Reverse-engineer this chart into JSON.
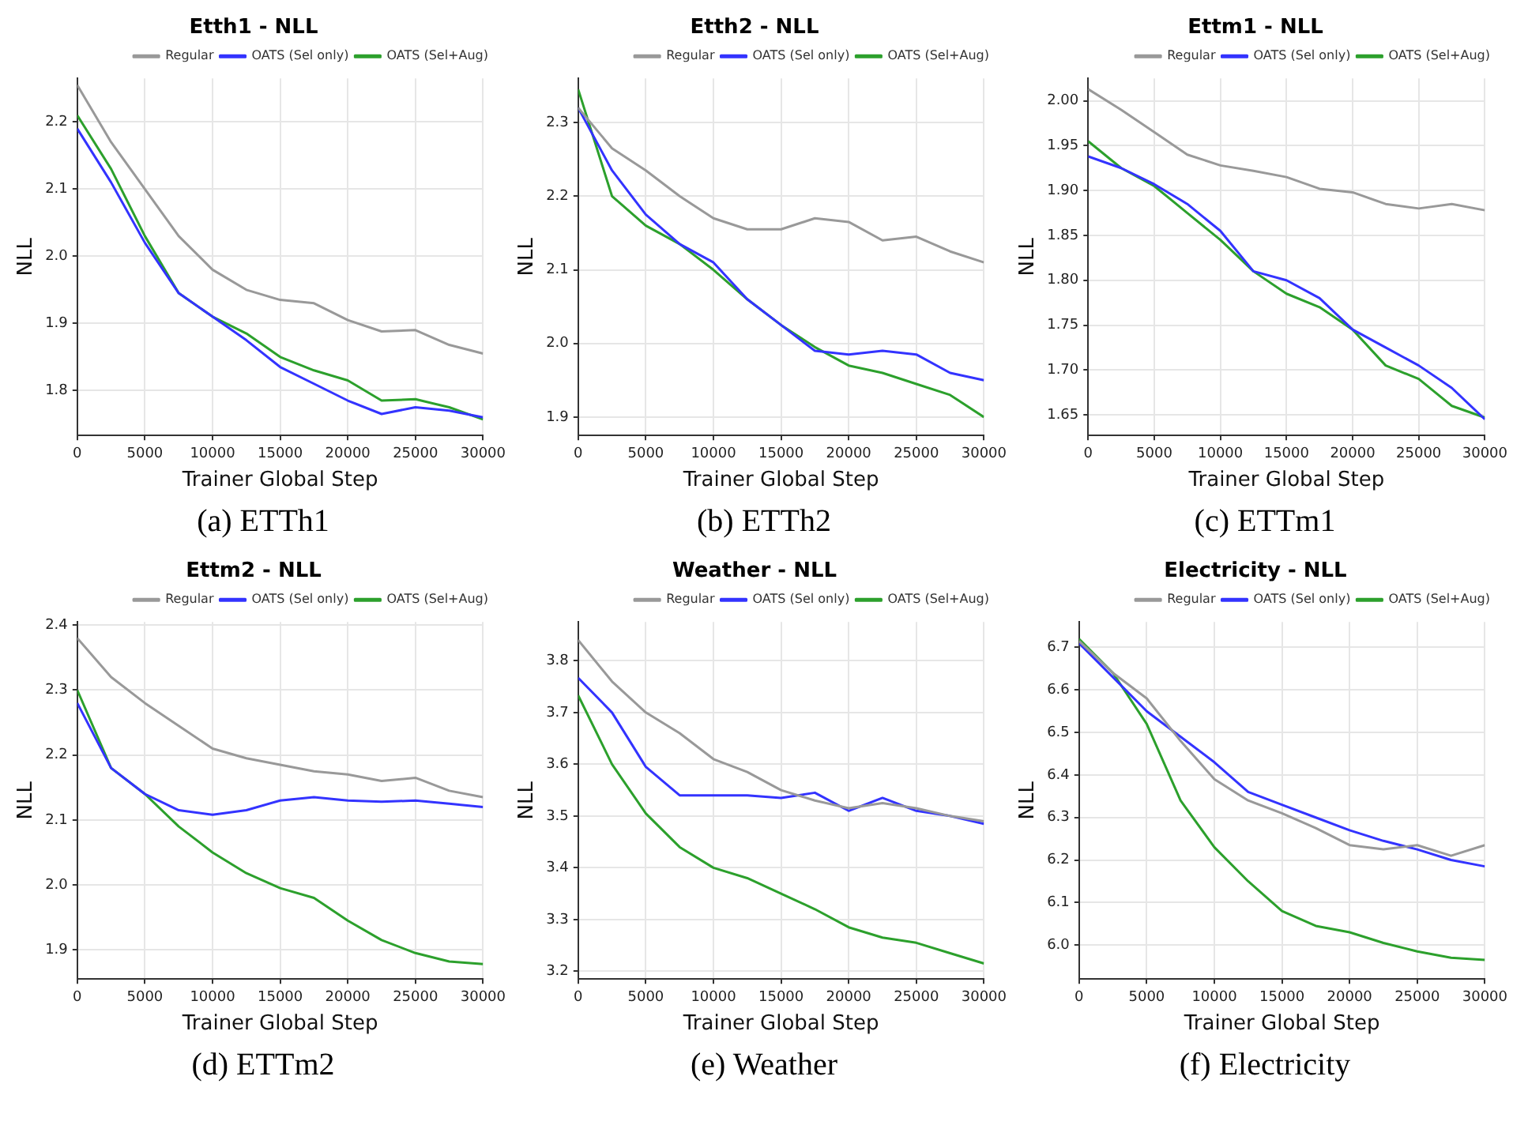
{
  "chart_data": [
    {
      "type": "line",
      "title": "Etth1 - NLL",
      "xlabel": "Trainer Global Step",
      "ylabel": "NLL",
      "annotations": [
        "(a) ETTh1"
      ],
      "legend": "top right",
      "grid": true,
      "marker": "none",
      "line_style": "solid",
      "xlim": [
        0,
        30000
      ],
      "xticks": [
        0,
        5000,
        10000,
        15000,
        20000,
        25000,
        30000
      ],
      "ylim": [
        1.733,
        2.265
      ],
      "yticks": [
        1.8,
        1.9,
        {
          "value": 2.0,
          "label": "2.0"
        },
        2.1,
        2.2
      ],
      "x": [
        0,
        2500,
        5000,
        7500,
        10000,
        12500,
        15000,
        17500,
        20000,
        22500,
        25000,
        27500,
        30000
      ],
      "series": [
        {
          "name": "Regular",
          "color": "#999999",
          "values": [
            2.255,
            2.17,
            2.1,
            2.03,
            1.98,
            1.95,
            1.935,
            1.93,
            1.905,
            1.888,
            1.89,
            1.868,
            1.855
          ]
        },
        {
          "name": "OATS (Sel only)",
          "color": "#3333ff",
          "values": [
            2.19,
            2.11,
            2.02,
            1.945,
            1.91,
            1.875,
            1.835,
            1.81,
            1.785,
            1.765,
            1.775,
            1.77,
            1.76
          ]
        },
        {
          "name": "OATS (Sel+Aug)",
          "color": "#2ca02c",
          "values": [
            2.21,
            2.13,
            2.03,
            1.945,
            1.91,
            1.885,
            1.85,
            1.83,
            1.815,
            1.785,
            1.787,
            1.775,
            1.757
          ]
        }
      ]
    },
    {
      "type": "line",
      "title": "Etth2 - NLL",
      "xlabel": "Trainer Global Step",
      "ylabel": "NLL",
      "annotations": [
        "(b) ETTh2"
      ],
      "legend": "top right",
      "grid": true,
      "marker": "none",
      "line_style": "solid",
      "xlim": [
        0,
        30000
      ],
      "xticks": [
        0,
        5000,
        10000,
        15000,
        20000,
        25000,
        30000
      ],
      "ylim": [
        1.875,
        2.36
      ],
      "yticks": [
        1.9,
        {
          "value": 2.0,
          "label": "2.0"
        },
        2.1,
        2.2,
        2.3
      ],
      "x": [
        0,
        2500,
        5000,
        7500,
        10000,
        12500,
        15000,
        17500,
        20000,
        22500,
        25000,
        27500,
        30000
      ],
      "series": [
        {
          "name": "Regular",
          "color": "#999999",
          "values": [
            2.32,
            2.265,
            2.235,
            2.2,
            2.17,
            2.155,
            2.155,
            2.17,
            2.165,
            2.14,
            2.145,
            2.125,
            2.11
          ]
        },
        {
          "name": "OATS (Sel only)",
          "color": "#3333ff",
          "values": [
            2.32,
            2.235,
            2.175,
            2.135,
            2.11,
            2.06,
            2.025,
            1.99,
            1.985,
            1.99,
            1.985,
            1.96,
            1.95
          ]
        },
        {
          "name": "OATS (Sel+Aug)",
          "color": "#2ca02c",
          "values": [
            2.345,
            2.2,
            2.16,
            2.135,
            2.1,
            2.06,
            2.025,
            1.995,
            1.97,
            1.96,
            1.945,
            1.93,
            1.9
          ]
        }
      ]
    },
    {
      "type": "line",
      "title": "Ettm1 - NLL",
      "xlabel": "Trainer Global Step",
      "ylabel": "NLL",
      "annotations": [
        "(c) ETTm1"
      ],
      "legend": "top right",
      "grid": true,
      "marker": "none",
      "line_style": "solid",
      "xlim": [
        0,
        30000
      ],
      "xticks": [
        0,
        5000,
        10000,
        15000,
        20000,
        25000,
        30000
      ],
      "ylim": [
        1.627,
        2.025
      ],
      "yticks": [
        1.65,
        {
          "value": 1.7,
          "label": "1.70"
        },
        1.75,
        {
          "value": 1.8,
          "label": "1.80"
        },
        1.85,
        {
          "value": 1.9,
          "label": "1.90"
        },
        1.95,
        {
          "value": 2.0,
          "label": "2.00"
        }
      ],
      "x": [
        0,
        2500,
        5000,
        7500,
        10000,
        12500,
        15000,
        17500,
        20000,
        22500,
        25000,
        27500,
        30000
      ],
      "series": [
        {
          "name": "Regular",
          "color": "#999999",
          "values": [
            2.013,
            1.99,
            1.965,
            1.94,
            1.928,
            1.922,
            1.915,
            1.902,
            1.898,
            1.885,
            1.88,
            1.885,
            1.878
          ]
        },
        {
          "name": "OATS (Sel only)",
          "color": "#3333ff",
          "values": [
            1.938,
            1.925,
            1.907,
            1.885,
            1.855,
            1.81,
            1.8,
            1.78,
            1.745,
            1.725,
            1.705,
            1.68,
            1.645
          ]
        },
        {
          "name": "OATS (Sel+Aug)",
          "color": "#2ca02c",
          "values": [
            1.955,
            1.925,
            1.905,
            1.875,
            1.845,
            1.81,
            1.785,
            1.77,
            1.745,
            1.705,
            1.69,
            1.66,
            1.647
          ]
        }
      ]
    },
    {
      "type": "line",
      "title": "Ettm2 - NLL",
      "xlabel": "Trainer Global Step",
      "ylabel": "NLL",
      "annotations": [
        "(d) ETTm2"
      ],
      "legend": "top right",
      "grid": true,
      "marker": "none",
      "line_style": "solid",
      "xlim": [
        0,
        30000
      ],
      "xticks": [
        0,
        5000,
        10000,
        15000,
        20000,
        25000,
        30000
      ],
      "ylim": [
        1.855,
        2.405
      ],
      "yticks": [
        1.9,
        {
          "value": 2.0,
          "label": "2.0"
        },
        2.1,
        2.2,
        2.3,
        2.4
      ],
      "x": [
        0,
        2500,
        5000,
        7500,
        10000,
        12500,
        15000,
        17500,
        20000,
        22500,
        25000,
        27500,
        30000
      ],
      "series": [
        {
          "name": "Regular",
          "color": "#999999",
          "values": [
            2.38,
            2.32,
            2.28,
            2.245,
            2.21,
            2.195,
            2.185,
            2.175,
            2.17,
            2.16,
            2.165,
            2.145,
            2.135
          ]
        },
        {
          "name": "OATS (Sel only)",
          "color": "#3333ff",
          "values": [
            2.28,
            2.18,
            2.14,
            2.115,
            2.108,
            2.115,
            2.13,
            2.135,
            2.13,
            2.128,
            2.13,
            2.125,
            2.12
          ]
        },
        {
          "name": "OATS (Sel+Aug)",
          "color": "#2ca02c",
          "values": [
            2.3,
            2.18,
            2.14,
            2.09,
            2.05,
            2.018,
            1.995,
            1.98,
            1.945,
            1.915,
            1.895,
            1.882,
            1.878
          ]
        }
      ]
    },
    {
      "type": "line",
      "title": "Weather - NLL",
      "xlabel": "Trainer Global Step",
      "ylabel": "NLL",
      "annotations": [
        "(e) Weather"
      ],
      "legend": "top right",
      "grid": true,
      "marker": "none",
      "line_style": "solid",
      "xlim": [
        0,
        30000
      ],
      "xticks": [
        0,
        5000,
        10000,
        15000,
        20000,
        25000,
        30000
      ],
      "ylim": [
        3.185,
        3.875
      ],
      "yticks": [
        3.2,
        3.3,
        3.4,
        3.5,
        3.6,
        3.7,
        3.8
      ],
      "x": [
        0,
        2500,
        5000,
        7500,
        10000,
        12500,
        15000,
        17500,
        20000,
        22500,
        25000,
        27500,
        30000
      ],
      "series": [
        {
          "name": "Regular",
          "color": "#999999",
          "values": [
            3.84,
            3.76,
            3.7,
            3.66,
            3.61,
            3.585,
            3.55,
            3.53,
            3.515,
            3.525,
            3.515,
            3.5,
            3.49
          ]
        },
        {
          "name": "OATS (Sel only)",
          "color": "#3333ff",
          "values": [
            3.767,
            3.7,
            3.595,
            3.54,
            3.54,
            3.54,
            3.535,
            3.545,
            3.51,
            3.535,
            3.51,
            3.5,
            3.485
          ]
        },
        {
          "name": "OATS (Sel+Aug)",
          "color": "#2ca02c",
          "values": [
            3.733,
            3.6,
            3.505,
            3.44,
            3.4,
            3.38,
            3.35,
            3.32,
            3.285,
            3.265,
            3.255,
            3.235,
            3.215
          ]
        }
      ]
    },
    {
      "type": "line",
      "title": "Electricity - NLL",
      "xlabel": "Trainer Global Step",
      "ylabel": "NLL",
      "annotations": [
        "(f) Electricity"
      ],
      "legend": "top right",
      "grid": true,
      "marker": "none",
      "line_style": "solid",
      "xlim": [
        0,
        30000
      ],
      "xticks": [
        0,
        5000,
        10000,
        15000,
        20000,
        25000,
        30000
      ],
      "ylim": [
        5.92,
        6.76
      ],
      "yticks": [
        {
          "value": 6.0,
          "label": "6.0"
        },
        6.1,
        6.2,
        6.3,
        6.4,
        6.5,
        6.6,
        6.7
      ],
      "x": [
        0,
        2500,
        5000,
        7500,
        10000,
        12500,
        15000,
        17500,
        20000,
        22500,
        25000,
        27500,
        30000
      ],
      "series": [
        {
          "name": "Regular",
          "color": "#999999",
          "values": [
            6.715,
            6.64,
            6.58,
            6.48,
            6.39,
            6.34,
            6.31,
            6.275,
            6.235,
            6.225,
            6.235,
            6.21,
            6.235
          ]
        },
        {
          "name": "OATS (Sel only)",
          "color": "#3333ff",
          "values": [
            6.71,
            6.63,
            6.55,
            6.49,
            6.43,
            6.36,
            6.33,
            6.3,
            6.27,
            6.245,
            6.225,
            6.2,
            6.185
          ]
        },
        {
          "name": "OATS (Sel+Aug)",
          "color": "#2ca02c",
          "values": [
            6.72,
            6.64,
            6.52,
            6.34,
            6.23,
            6.15,
            6.08,
            6.045,
            6.03,
            6.005,
            5.985,
            5.97,
            5.965
          ]
        }
      ]
    }
  ]
}
